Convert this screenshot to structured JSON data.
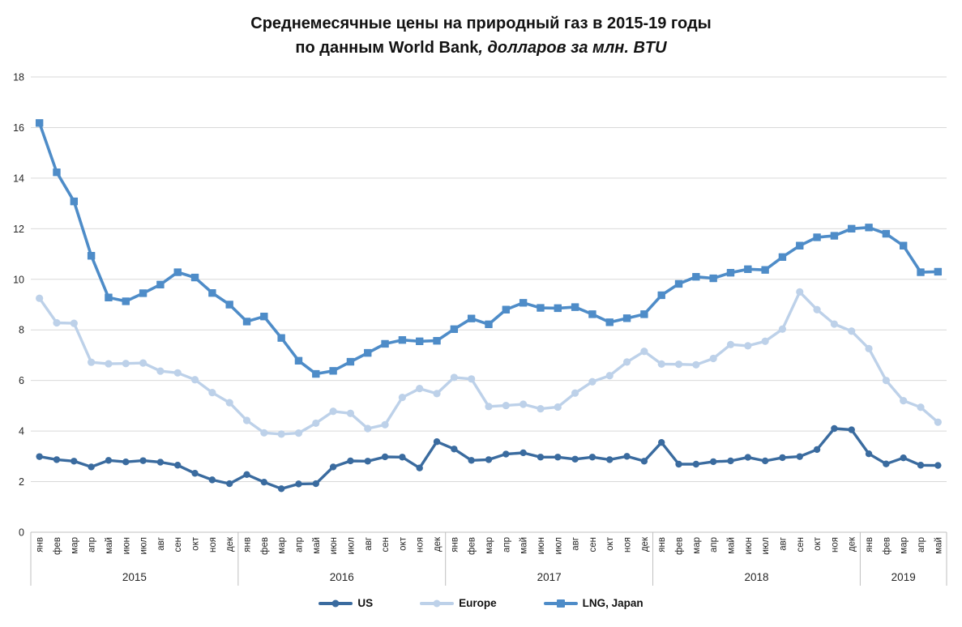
{
  "chart_data": {
    "type": "line",
    "title_line1": "Среднемесячные цены на природный газ в 2015-19 годы",
    "title_line2": "по данным World Bank",
    "title_line2_italic": ", долларов за млн. BTU",
    "xlabel": "",
    "ylabel": "",
    "ylim": [
      0,
      18
    ],
    "yticks": [
      0,
      2,
      4,
      6,
      8,
      10,
      12,
      14,
      16,
      18
    ],
    "grid": true,
    "legend_position": "bottom",
    "month_labels": [
      "янв",
      "фев",
      "мар",
      "апр",
      "май",
      "июн",
      "июл",
      "авг",
      "сен",
      "окт",
      "ноя",
      "дек",
      "янв",
      "фев",
      "мар",
      "апр",
      "май",
      "июн",
      "июл",
      "авг",
      "сен",
      "окт",
      "ноя",
      "дек",
      "янв",
      "фев",
      "мар",
      "апр",
      "май",
      "июн",
      "июл",
      "авг",
      "сен",
      "окт",
      "ноя",
      "дек",
      "янв",
      "фев",
      "мар",
      "апр",
      "май",
      "июн",
      "июл",
      "авг",
      "сен",
      "окт",
      "ноя",
      "дек",
      "янв",
      "фев",
      "мар",
      "апр",
      "май"
    ],
    "year_groups": [
      {
        "label": "2015",
        "count": 12
      },
      {
        "label": "2016",
        "count": 12
      },
      {
        "label": "2017",
        "count": 12
      },
      {
        "label": "2018",
        "count": 12
      },
      {
        "label": "2019",
        "count": 5
      }
    ],
    "series": [
      {
        "name": "US",
        "color": "#3A6B9F",
        "marker": "circle",
        "values": [
          2.99,
          2.87,
          2.81,
          2.58,
          2.84,
          2.78,
          2.83,
          2.77,
          2.65,
          2.33,
          2.07,
          1.92,
          2.28,
          1.98,
          1.72,
          1.91,
          1.92,
          2.58,
          2.82,
          2.81,
          2.98,
          2.97,
          2.54,
          3.58,
          3.29,
          2.84,
          2.87,
          3.09,
          3.14,
          2.97,
          2.97,
          2.89,
          2.97,
          2.87,
          3.0,
          2.81,
          3.55,
          2.69,
          2.69,
          2.79,
          2.82,
          2.96,
          2.82,
          2.95,
          2.99,
          3.27,
          4.1,
          4.05,
          3.1,
          2.7,
          2.94,
          2.65,
          2.64
        ]
      },
      {
        "name": "Europe",
        "color": "#BDD1E9",
        "marker": "circle",
        "values": [
          9.25,
          8.28,
          8.26,
          6.72,
          6.66,
          6.67,
          6.69,
          6.37,
          6.3,
          6.03,
          5.52,
          5.12,
          4.42,
          3.93,
          3.88,
          3.92,
          4.31,
          4.78,
          4.7,
          4.1,
          4.25,
          5.33,
          5.68,
          5.48,
          6.12,
          6.06,
          4.97,
          5.01,
          5.06,
          4.88,
          4.95,
          5.5,
          5.95,
          6.19,
          6.73,
          7.15,
          6.65,
          6.64,
          6.62,
          6.87,
          7.42,
          7.37,
          7.55,
          8.03,
          9.5,
          8.8,
          8.23,
          7.95,
          7.26,
          6.0,
          5.2,
          4.94,
          4.35
        ]
      },
      {
        "name": "LNG, Japan",
        "color": "#4E8CC8",
        "marker": "square",
        "values": [
          16.18,
          14.23,
          13.08,
          10.93,
          9.28,
          9.13,
          9.45,
          9.79,
          10.28,
          10.07,
          9.46,
          9.0,
          8.33,
          8.53,
          7.68,
          6.78,
          6.26,
          6.38,
          6.74,
          7.09,
          7.45,
          7.6,
          7.55,
          7.57,
          8.03,
          8.45,
          8.22,
          8.8,
          9.07,
          8.87,
          8.86,
          8.9,
          8.62,
          8.3,
          8.46,
          8.62,
          9.37,
          9.82,
          10.1,
          10.04,
          10.26,
          10.4,
          10.37,
          10.88,
          11.33,
          11.66,
          11.72,
          12.0,
          12.05,
          11.8,
          11.33,
          10.28,
          10.3
        ]
      }
    ],
    "colors": {
      "gridline": "#D9D9D9",
      "axis": "#BFBFBF",
      "tick_label": "#262626",
      "title": "#121212"
    }
  }
}
